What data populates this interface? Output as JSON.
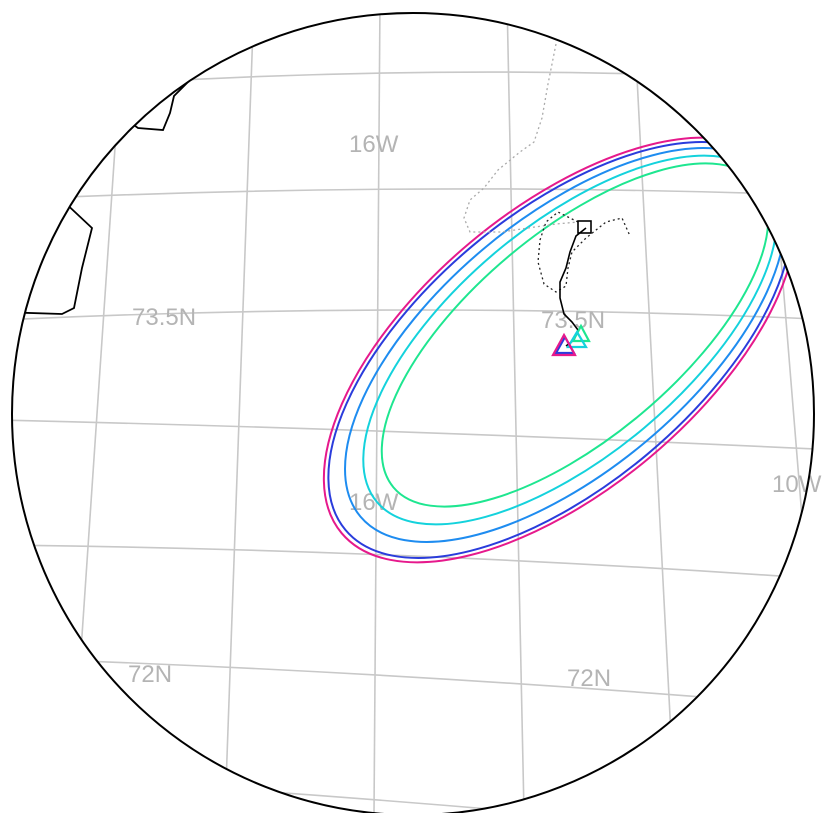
{
  "map": {
    "grid_labels": {
      "lon_top": "16W",
      "lon_mid": "16W",
      "lon_right": "10W",
      "lat_left_upper": "73.5N",
      "lat_right_upper": "73.5N",
      "lat_left_lower": "72N",
      "lat_right_lower": "72N"
    },
    "colors": {
      "frame": "#000000",
      "graticule": "#c8c8c8",
      "track_solid": "#000000",
      "track_dotted_dark": "#222222",
      "track_dotted_light": "#aaaaaa"
    },
    "contours": [
      {
        "name": "contour-magenta",
        "color": "#e6198c"
      },
      {
        "name": "contour-blue",
        "color": "#2a3cdc"
      },
      {
        "name": "contour-azure",
        "color": "#1e8cf0"
      },
      {
        "name": "contour-cyan",
        "color": "#14d2dc"
      },
      {
        "name": "contour-green",
        "color": "#1ee690"
      }
    ],
    "markers": [
      {
        "name": "triangle-marker-magenta",
        "color": "#e6198c"
      },
      {
        "name": "triangle-marker-blue",
        "color": "#2a3cdc"
      },
      {
        "name": "triangle-marker-cyan",
        "color": "#14d2dc"
      },
      {
        "name": "triangle-marker-green",
        "color": "#1ee690"
      }
    ],
    "square_marker": {
      "name": "square-marker",
      "color": "#000000"
    }
  }
}
